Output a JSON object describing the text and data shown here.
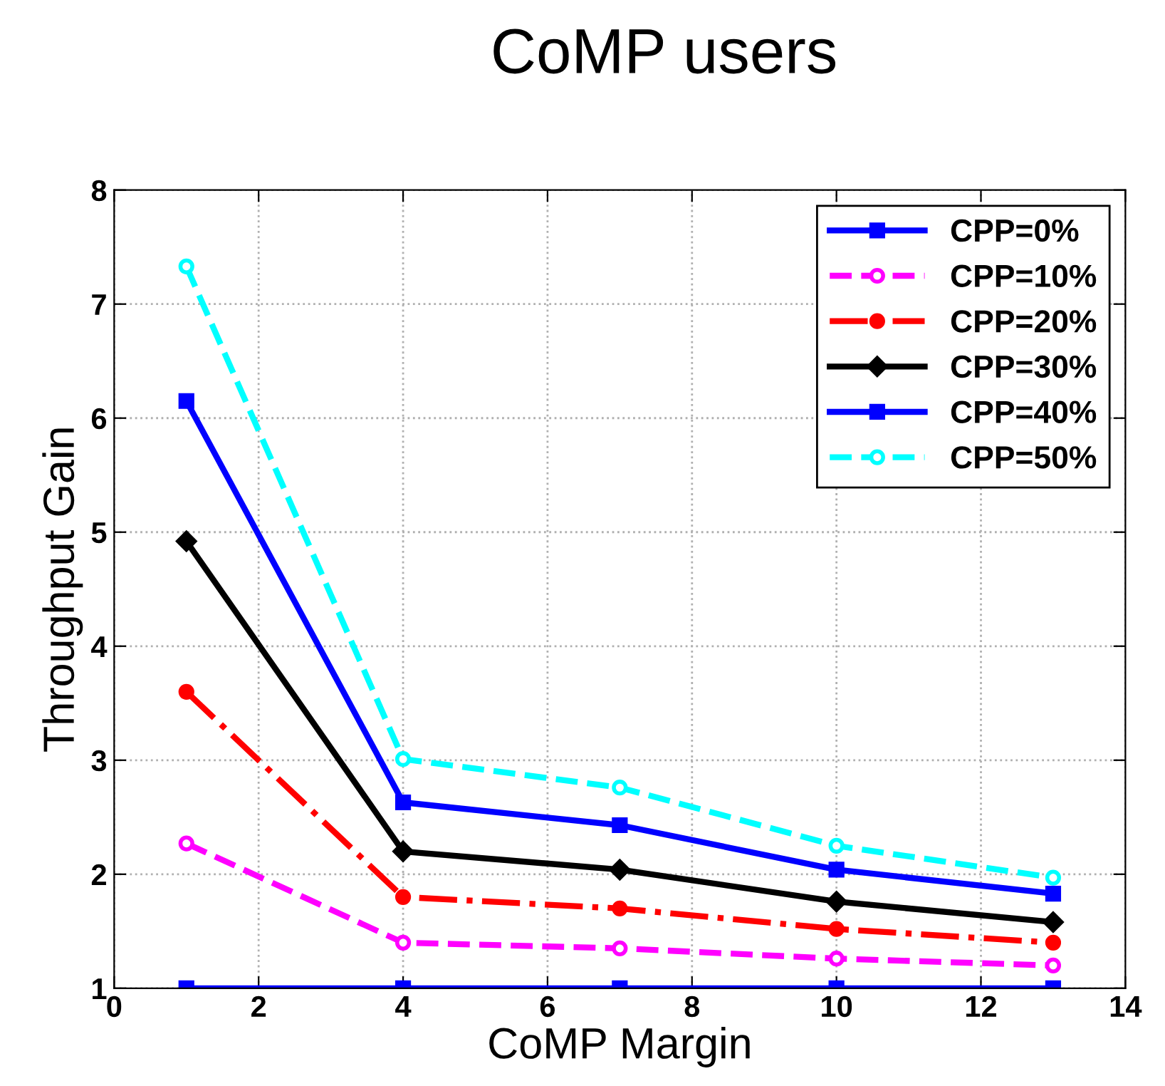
{
  "chart_data": {
    "type": "line",
    "title": "CoMP users",
    "xlabel": "CoMP Margin",
    "ylabel": "Throughput Gain",
    "x": [
      1,
      4,
      7,
      10,
      13
    ],
    "series": [
      {
        "name": "CPP=0%",
        "color": "#0000ff",
        "marker": "square",
        "line_style": "solid",
        "values": [
          1,
          1,
          1,
          1,
          1
        ]
      },
      {
        "name": "CPP=10%",
        "color": "#ff00ff",
        "marker": "circle",
        "line_style": "dashed",
        "values": [
          2.27,
          1.4,
          1.35,
          1.26,
          1.2
        ]
      },
      {
        "name": "CPP=20%",
        "color": "#ff0000",
        "marker": "circle",
        "line_style": "dashdot",
        "values": [
          3.6,
          1.8,
          1.7,
          1.52,
          1.4
        ]
      },
      {
        "name": "CPP=30%",
        "color": "#000000",
        "marker": "diamond",
        "line_style": "solid",
        "values": [
          4.92,
          2.2,
          2.04,
          1.76,
          1.58
        ]
      },
      {
        "name": "CPP=40%",
        "color": "#0000ff",
        "marker": "square",
        "line_style": "solid",
        "values": [
          6.15,
          2.63,
          2.43,
          2.04,
          1.83
        ]
      },
      {
        "name": "CPP=50%",
        "color": "#00ffff",
        "marker": "circle",
        "line_style": "dashed",
        "values": [
          7.33,
          3.01,
          2.76,
          2.25,
          1.97
        ]
      }
    ],
    "xlim": [
      0,
      14
    ],
    "xticks": [
      0,
      2,
      4,
      6,
      8,
      10,
      12,
      14
    ],
    "ylim": [
      1,
      8
    ],
    "yticks": [
      1,
      2,
      3,
      4,
      5,
      6,
      7,
      8
    ],
    "grid": true,
    "legend": "top right"
  }
}
